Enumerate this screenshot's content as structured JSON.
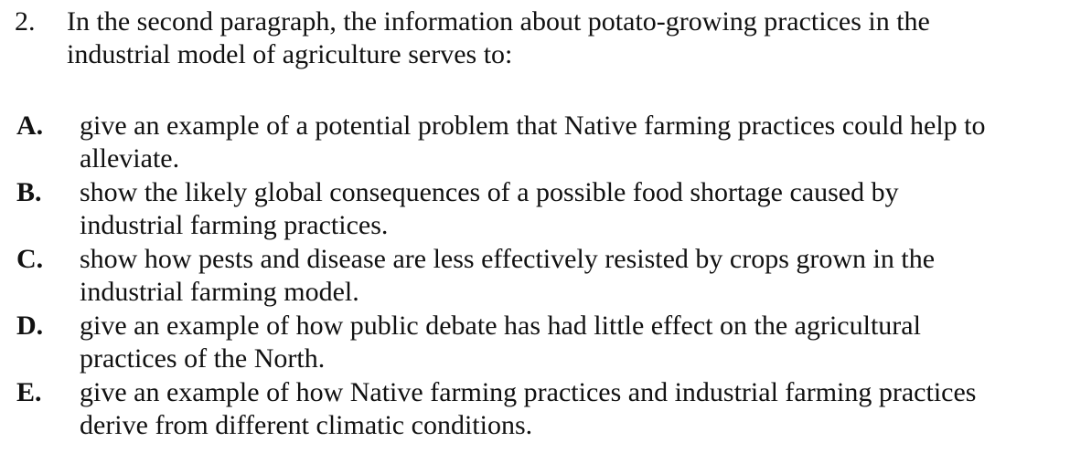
{
  "question": {
    "number": "2.",
    "text": "In the second paragraph, the information about potato-growing practices in the\nindustrial model of agriculture serves to:"
  },
  "options": [
    {
      "letter": "A.",
      "text": "give an example of a potential problem that Native farming practices could help to\nalleviate."
    },
    {
      "letter": "B.",
      "text": "show the likely global consequences of a possible food shortage caused by\nindustrial farming practices."
    },
    {
      "letter": "C.",
      "text": "show how pests and disease are less effectively resisted by crops grown in the\nindustrial farming model."
    },
    {
      "letter": "D.",
      "text": "give an example of how public debate has had little effect on the agricultural\npractices of the North."
    },
    {
      "letter": "E.",
      "text": "give an example of how Native farming practices and industrial farming practices\nderive from different climatic conditions."
    }
  ]
}
